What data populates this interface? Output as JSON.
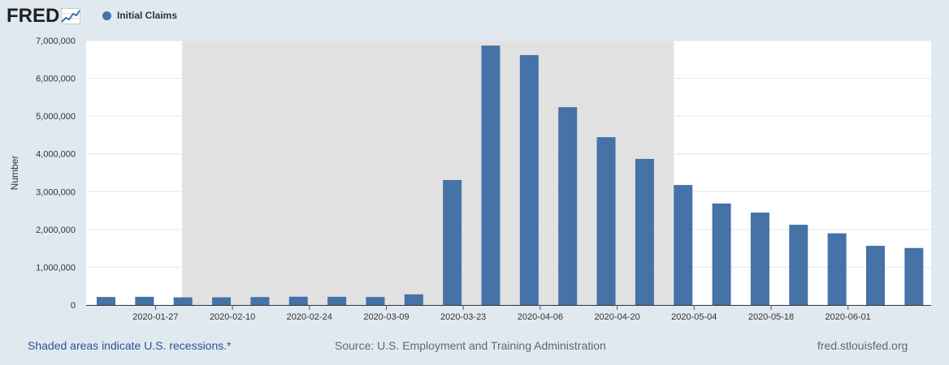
{
  "header": {
    "logo_text": "FRED",
    "legend_label": "Initial Claims",
    "legend_color": "#4572a7"
  },
  "chart_data": {
    "type": "bar",
    "ylabel": "Number",
    "ylim": [
      0,
      7000000
    ],
    "yticks": [
      "0",
      "1,000,000",
      "2,000,000",
      "3,000,000",
      "4,000,000",
      "5,000,000",
      "6,000,000",
      "7,000,000"
    ],
    "xtick_labels": [
      "2020-01-27",
      "2020-02-10",
      "2020-02-24",
      "2020-03-09",
      "2020-03-23",
      "2020-04-06",
      "2020-04-20",
      "2020-05-04",
      "2020-05-18",
      "2020-06-01"
    ],
    "categories": [
      "2020-01-18",
      "2020-01-25",
      "2020-02-01",
      "2020-02-08",
      "2020-02-15",
      "2020-02-22",
      "2020-02-29",
      "2020-03-07",
      "2020-03-14",
      "2020-03-21",
      "2020-03-28",
      "2020-04-04",
      "2020-04-11",
      "2020-04-18",
      "2020-04-25",
      "2020-05-02",
      "2020-05-09",
      "2020-05-16",
      "2020-05-23",
      "2020-05-30",
      "2020-06-06",
      "2020-06-13"
    ],
    "series": [
      {
        "name": "Initial Claims",
        "color": "#4572a7",
        "values": [
          211000,
          216000,
          202000,
          203000,
          210000,
          219000,
          216000,
          211000,
          282000,
          3307000,
          6867000,
          6615000,
          5237000,
          4442000,
          3867000,
          3176000,
          2687000,
          2446000,
          2123000,
          1897000,
          1566000,
          1508000
        ]
      }
    ],
    "recession_shading": {
      "from": "2020-02-01",
      "to": "2020-04-30"
    },
    "grid": true
  },
  "footer": {
    "recession_note": "Shaded areas indicate U.S. recessions.*",
    "source": "Source: U.S. Employment and Training Administration",
    "site": "fred.stlouisfed.org"
  }
}
